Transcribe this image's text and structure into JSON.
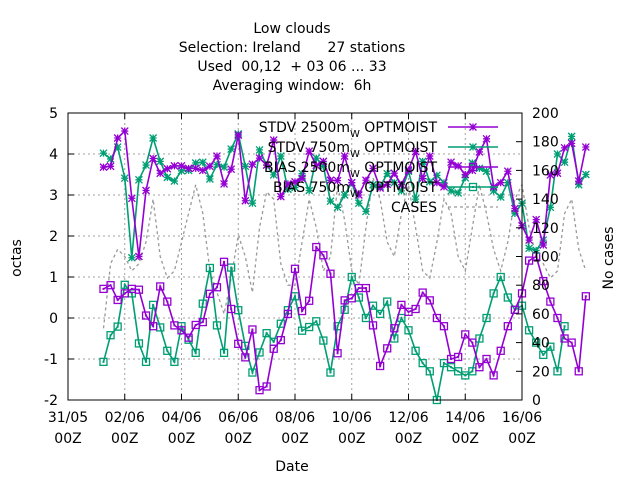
{
  "chart_data": {
    "type": "line",
    "title_lines": [
      "Low clouds",
      "Selection: Ireland      27 stations",
      "Used  00,12  + 03 06 ... 33",
      "Averaging window:  6h"
    ],
    "xlabel": "Date",
    "ylabel_left": "octas",
    "ylabel_right": "No cases",
    "ylim_left": [
      -2,
      5
    ],
    "ylim_right": [
      0,
      200
    ],
    "yticks_left": [
      "-2",
      "-1",
      "0",
      "1",
      "2",
      "3",
      "4",
      "5"
    ],
    "yticks_right": [
      "0",
      "20",
      "40",
      "60",
      "80",
      "100",
      "120",
      "140",
      "160",
      "180",
      "200"
    ],
    "x_range_days": [
      0,
      16
    ],
    "xticks": [
      {
        "day": 0,
        "line1": "31/05",
        "line2": "00Z"
      },
      {
        "day": 2,
        "line1": "02/06",
        "line2": "00Z"
      },
      {
        "day": 4,
        "line1": "04/06",
        "line2": "00Z"
      },
      {
        "day": 6,
        "line1": "06/06",
        "line2": "00Z"
      },
      {
        "day": 8,
        "line1": "08/06",
        "line2": "00Z"
      },
      {
        "day": 10,
        "line1": "10/06",
        "line2": "00Z"
      },
      {
        "day": 12,
        "line1": "12/06",
        "line2": "00Z"
      },
      {
        "day": 14,
        "line1": "14/06",
        "line2": "00Z"
      },
      {
        "day": 16,
        "line1": "16/06",
        "line2": "00Z"
      }
    ],
    "grid": true,
    "legend_position": "top-right",
    "x_start_day": 1.25,
    "x_step_days": 0.25,
    "series": [
      {
        "name": "STDV 2500m",
        "name_sub": "W",
        "name_suffix": " OPTMOIST",
        "axis": "left",
        "marker": "star",
        "color": "#9400d3",
        "values": [
          3.68,
          3.7,
          4.39,
          4.56,
          2.92,
          1.5,
          3.11,
          3.89,
          3.53,
          3.64,
          3.71,
          3.71,
          3.65,
          3.65,
          3.6,
          3.7,
          3.95,
          3.27,
          3.63,
          4.46,
          2.86,
          3.75,
          3.9,
          3.73,
          4.34,
          2.96,
          3.27,
          3.32,
          3.4,
          4.07,
          3.72,
          3.82,
          3.36,
          3.35,
          3.95,
          3.3,
          3.0,
          3.36,
          3.65,
          3.17,
          3.26,
          3.53,
          3.25,
          3.61,
          4.06,
          3.4,
          3.95,
          3.3,
          3.2,
          3.8,
          3.71,
          3.5,
          3.6,
          4.05,
          4.37,
          3.2,
          3.3,
          3.58,
          2.67,
          2.25,
          1.9,
          2.4,
          1.78,
          3.49,
          3.53,
          4.15,
          4.26,
          3.34,
          4.17
        ]
      },
      {
        "name": "STDV 750m",
        "name_sub": "W",
        "name_suffix": " OPTMOIST",
        "axis": "left",
        "marker": "star",
        "color": "#009e73",
        "values": [
          4.02,
          3.88,
          4.17,
          3.41,
          1.47,
          3.37,
          3.73,
          4.39,
          3.82,
          3.43,
          3.34,
          3.59,
          3.6,
          3.78,
          3.8,
          3.39,
          3.74,
          3.68,
          4.12,
          4.49,
          3.7,
          2.8,
          4.1,
          3.73,
          3.49,
          3.95,
          3.14,
          3.18,
          3.52,
          3.11,
          3.9,
          3.7,
          2.85,
          2.7,
          3.0,
          3.3,
          2.8,
          2.6,
          3.25,
          3.2,
          3.52,
          3.3,
          3.1,
          3.58,
          2.9,
          3.82,
          3.32,
          3.48,
          3.3,
          3.1,
          3.05,
          3.42,
          3.78,
          3.65,
          3.58,
          3.1,
          2.95,
          3.3,
          2.55,
          2.8,
          1.7,
          1.65,
          1.9,
          2.7,
          4.0,
          3.8,
          4.43,
          3.25,
          3.5
        ]
      },
      {
        "name": "BIAS 2500m",
        "name_sub": "W",
        "name_suffix": " OPTMOIST",
        "axis": "left",
        "marker": "square",
        "color": "#9400d3",
        "values": [
          0.71,
          0.8,
          0.44,
          0.6,
          0.71,
          0.69,
          0.06,
          -0.2,
          0.77,
          0.4,
          -0.18,
          -0.3,
          -0.48,
          -0.17,
          -0.1,
          0.59,
          0.75,
          1.37,
          0.22,
          -0.63,
          -0.96,
          -0.28,
          -1.76,
          -1.67,
          -0.75,
          -0.54,
          0.1,
          1.2,
          0.17,
          0.42,
          1.73,
          1.53,
          1.08,
          -0.86,
          0.43,
          0.48,
          0.73,
          0.73,
          -0.18,
          -1.17,
          -0.74,
          -0.25,
          0.32,
          0.15,
          0.22,
          0.62,
          0.43,
          0.0,
          -0.2,
          -1.0,
          -0.95,
          -0.4,
          -0.6,
          -1.2,
          -1.0,
          -1.4,
          -0.8,
          -0.2,
          0.2,
          0.6,
          1.4,
          1.5,
          0.9,
          0.4,
          0.0,
          -0.5,
          -0.6,
          -1.3,
          0.53
        ]
      },
      {
        "name": "BIAS 750m",
        "name_sub": "W",
        "name_suffix": " OPTMOIST",
        "axis": "left",
        "marker": "square",
        "color": "#009e73",
        "values": [
          -1.07,
          -0.42,
          -0.21,
          0.81,
          0.6,
          -0.62,
          -1.07,
          0.32,
          -0.23,
          -0.8,
          -1.07,
          -0.2,
          -0.53,
          -0.85,
          0.35,
          1.22,
          -0.18,
          -0.85,
          1.23,
          0.19,
          -0.68,
          -1.33,
          -0.84,
          -0.37,
          -0.58,
          -0.14,
          0.19,
          0.53,
          -0.31,
          -0.22,
          -0.08,
          -0.55,
          -1.33,
          -0.2,
          0.2,
          1.0,
          0.5,
          0.0,
          0.3,
          0.1,
          0.4,
          -0.5,
          0.0,
          -0.3,
          -0.8,
          -1.1,
          -1.3,
          -2.0,
          -1.1,
          -1.2,
          -1.3,
          -1.4,
          -1.3,
          -0.5,
          0.0,
          0.6,
          1.0,
          0.5,
          0.2,
          0.3,
          -0.3,
          -0.6,
          -0.9,
          -0.7,
          -1.3,
          -0.2
        ]
      },
      {
        "name": "CASES",
        "axis": "right",
        "marker": "none",
        "style": "dashed",
        "color": "#999999",
        "values": [
          50,
          95,
          105,
          100,
          90,
          95,
          110,
          140,
          100,
          85,
          90,
          110,
          130,
          150,
          130,
          90,
          75,
          60,
          85,
          115,
          100,
          75,
          120,
          145,
          140,
          95,
          80,
          80,
          110,
          140,
          120,
          90,
          100,
          150,
          125,
          90,
          80,
          120,
          155,
          140,
          110,
          100,
          130,
          150,
          120,
          90,
          85,
          110,
          140,
          130,
          100,
          90,
          120,
          150,
          130,
          105,
          90,
          110,
          140,
          150,
          120,
          100,
          95,
          85,
          90,
          130,
          140,
          105,
          90
        ]
      }
    ]
  }
}
